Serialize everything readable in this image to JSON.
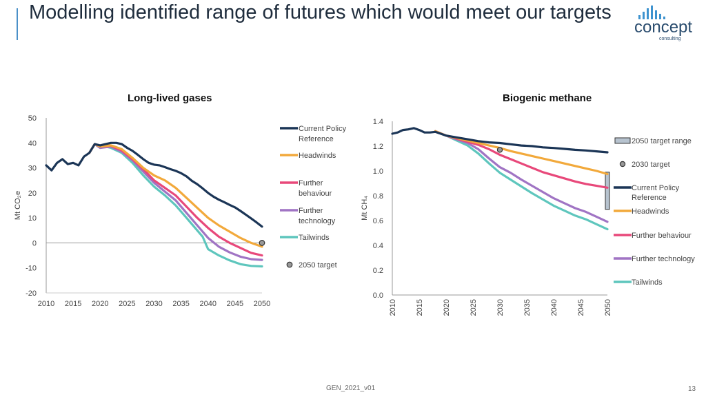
{
  "slide": {
    "title": "Modelling identified range of futures which would meet our targets",
    "footer": "GEN_2021_v01",
    "page_number": "13"
  },
  "logo": {
    "word": "concept",
    "sub": "consulting"
  },
  "colors": {
    "current_policy": "#1b3556",
    "headwinds": "#f2a93b",
    "further_behaviour": "#e8487a",
    "further_technology": "#a074c4",
    "tailwinds": "#5ec6bd",
    "axis": "#999999",
    "text": "#444444"
  },
  "chart_data": [
    {
      "type": "line",
      "title": "Long-lived gases",
      "ylabel": "Mt CO₂e",
      "xlabel": "",
      "xlim": [
        2010,
        2050
      ],
      "ylim": [
        -20,
        50
      ],
      "xticks": [
        2010,
        2015,
        2020,
        2025,
        2030,
        2035,
        2040,
        2045,
        2050
      ],
      "yticks": [
        50,
        40,
        30,
        20,
        10,
        0,
        -10,
        -20
      ],
      "legend_position": "right",
      "series": [
        {
          "name": "Current Policy Reference",
          "key": "current_policy",
          "x": [
            2010,
            2011,
            2012,
            2013,
            2014,
            2015,
            2016,
            2017,
            2018,
            2019,
            2020,
            2021,
            2022,
            2023,
            2024,
            2025,
            2026,
            2027,
            2028,
            2029,
            2030,
            2031,
            2032,
            2033,
            2034,
            2035,
            2036,
            2037,
            2038,
            2039,
            2040,
            2041,
            2042,
            2043,
            2044,
            2045,
            2046,
            2047,
            2048,
            2049,
            2050
          ],
          "y": [
            31,
            29,
            32,
            33.5,
            31.5,
            32,
            31,
            34.5,
            36,
            39.5,
            39,
            39.5,
            40,
            40,
            39.5,
            38,
            36.8,
            35.2,
            33.5,
            32,
            31.3,
            31,
            30.3,
            29.5,
            28.8,
            27.9,
            26.6,
            24.8,
            23.5,
            21.8,
            20,
            18.5,
            17.3,
            16.3,
            15.2,
            14.2,
            12.8,
            11.3,
            9.8,
            8.2,
            6.5
          ]
        },
        {
          "name": "Headwinds",
          "key": "headwinds",
          "x": [
            2018,
            2019,
            2020,
            2022,
            2024,
            2026,
            2028,
            2030,
            2032,
            2034,
            2036,
            2038,
            2040,
            2042,
            2044,
            2046,
            2048,
            2050
          ],
          "y": [
            36,
            39.5,
            38.5,
            39,
            37.5,
            34,
            30,
            27,
            25,
            22,
            18,
            14,
            10,
            7,
            4.5,
            2,
            0,
            -1.5
          ]
        },
        {
          "name": "Further behaviour",
          "key": "further_behaviour",
          "x": [
            2018,
            2019,
            2020,
            2022,
            2024,
            2026,
            2028,
            2030,
            2032,
            2034,
            2036,
            2038,
            2040,
            2042,
            2044,
            2046,
            2048,
            2050
          ],
          "y": [
            36,
            39.5,
            38.5,
            38.8,
            37,
            33.5,
            29.5,
            25,
            22,
            19,
            14.5,
            10,
            6,
            2.5,
            0,
            -2,
            -4,
            -5
          ]
        },
        {
          "name": "Further technology",
          "key": "further_technology",
          "x": [
            2018,
            2019,
            2020,
            2022,
            2024,
            2026,
            2028,
            2030,
            2032,
            2034,
            2036,
            2038,
            2040,
            2042,
            2044,
            2046,
            2048,
            2050
          ],
          "y": [
            36,
            39.5,
            38,
            38.5,
            36.5,
            33,
            28.5,
            24,
            20.5,
            17,
            12,
            7,
            2,
            -1.5,
            -3.8,
            -5.5,
            -6.5,
            -6.8
          ]
        },
        {
          "name": "Tailwinds",
          "key": "tailwinds",
          "x": [
            2018,
            2019,
            2020,
            2021,
            2022,
            2024,
            2026,
            2028,
            2030,
            2032,
            2034,
            2036,
            2038,
            2039,
            2040,
            2042,
            2044,
            2046,
            2048,
            2050
          ],
          "y": [
            36,
            39.5,
            38,
            38.5,
            38,
            36,
            32,
            27,
            22.5,
            19,
            15,
            10,
            5,
            2.5,
            -2.5,
            -5,
            -7,
            -8.5,
            -9.2,
            -9.4
          ]
        }
      ],
      "markers": [
        {
          "name": "2050 target",
          "x": 2050,
          "y": 0
        }
      ],
      "legend": [
        {
          "key": "current_policy",
          "lines": [
            "Current Policy",
            "Reference"
          ]
        },
        {
          "key": "headwinds",
          "lines": [
            "Headwinds"
          ]
        },
        {
          "key": "further_behaviour",
          "lines": [
            "Further",
            "behaviour"
          ]
        },
        {
          "key": "further_technology",
          "lines": [
            "Further",
            "technology"
          ]
        },
        {
          "key": "tailwinds",
          "lines": [
            "Tailwinds"
          ]
        },
        {
          "key": "target_2050",
          "lines": [
            "2050 target"
          ],
          "marker": "circle"
        }
      ]
    },
    {
      "type": "line",
      "title": "Biogenic methane",
      "ylabel": "Mt CH₄",
      "xlabel": "",
      "xlim": [
        2010,
        2050
      ],
      "ylim": [
        0.0,
        1.4
      ],
      "xticks": [
        2010,
        2015,
        2020,
        2025,
        2030,
        2035,
        2040,
        2045,
        2050
      ],
      "ytick_labels": [
        "1.4",
        "1.2",
        "1.0",
        "0.8",
        "0.6",
        "0.4",
        "0.2",
        "0.0"
      ],
      "yticks": [
        1.4,
        1.2,
        1.0,
        0.8,
        0.6,
        0.4,
        0.2,
        0.0
      ],
      "x_tick_rotation": "vertical",
      "legend_position": "right",
      "series": [
        {
          "name": "Current Policy Reference",
          "key": "current_policy",
          "x": [
            2010,
            2011,
            2012,
            2013,
            2014,
            2015,
            2016,
            2017,
            2018,
            2019,
            2020,
            2022,
            2024,
            2026,
            2028,
            2030,
            2032,
            2034,
            2036,
            2038,
            2040,
            2042,
            2044,
            2046,
            2048,
            2050
          ],
          "y": [
            1.3,
            1.31,
            1.33,
            1.335,
            1.345,
            1.33,
            1.31,
            1.31,
            1.315,
            1.3,
            1.285,
            1.27,
            1.255,
            1.24,
            1.23,
            1.225,
            1.215,
            1.205,
            1.2,
            1.19,
            1.185,
            1.178,
            1.17,
            1.165,
            1.158,
            1.15
          ]
        },
        {
          "name": "Headwinds",
          "key": "headwinds",
          "x": [
            2018,
            2020,
            2022,
            2024,
            2026,
            2028,
            2030,
            2032,
            2034,
            2036,
            2038,
            2040,
            2042,
            2044,
            2046,
            2048,
            2050
          ],
          "y": [
            1.32,
            1.285,
            1.265,
            1.245,
            1.225,
            1.205,
            1.185,
            1.16,
            1.14,
            1.12,
            1.1,
            1.08,
            1.06,
            1.04,
            1.02,
            1.0,
            0.975
          ]
        },
        {
          "name": "Further behaviour",
          "key": "further_behaviour",
          "x": [
            2018,
            2020,
            2022,
            2024,
            2026,
            2028,
            2030,
            2032,
            2034,
            2036,
            2038,
            2040,
            2042,
            2044,
            2046,
            2048,
            2050
          ],
          "y": [
            1.32,
            1.285,
            1.26,
            1.235,
            1.21,
            1.175,
            1.13,
            1.095,
            1.06,
            1.025,
            0.99,
            0.965,
            0.94,
            0.915,
            0.895,
            0.88,
            0.865
          ]
        },
        {
          "name": "Further technology",
          "key": "further_technology",
          "x": [
            2018,
            2020,
            2022,
            2024,
            2026,
            2028,
            2030,
            2032,
            2034,
            2036,
            2038,
            2040,
            2042,
            2044,
            2046,
            2048,
            2050
          ],
          "y": [
            1.32,
            1.285,
            1.255,
            1.225,
            1.175,
            1.1,
            1.03,
            0.985,
            0.93,
            0.88,
            0.83,
            0.78,
            0.74,
            0.7,
            0.67,
            0.63,
            0.59
          ]
        },
        {
          "name": "Tailwinds",
          "key": "tailwinds",
          "x": [
            2018,
            2020,
            2022,
            2024,
            2026,
            2028,
            2030,
            2032,
            2034,
            2036,
            2038,
            2040,
            2042,
            2044,
            2046,
            2048,
            2050
          ],
          "y": [
            1.32,
            1.285,
            1.245,
            1.205,
            1.14,
            1.06,
            0.985,
            0.93,
            0.875,
            0.82,
            0.77,
            0.72,
            0.68,
            0.64,
            0.61,
            0.57,
            0.53
          ]
        }
      ],
      "markers": [
        {
          "name": "2030 target",
          "x": 2030,
          "y": 1.17
        }
      ],
      "range_bars": [
        {
          "name": "2050 target range",
          "x": 2050,
          "y_low": 0.69,
          "y_high": 0.99
        }
      ],
      "legend": [
        {
          "key": "target_range",
          "lines": [
            "2050 target range"
          ],
          "marker": "box"
        },
        {
          "key": "target_2030",
          "lines": [
            "2030 target"
          ],
          "marker": "circle"
        },
        {
          "key": "current_policy",
          "lines": [
            "Current Policy",
            "Reference"
          ]
        },
        {
          "key": "headwinds",
          "lines": [
            "Headwinds"
          ]
        },
        {
          "key": "further_behaviour",
          "lines": [
            "Further behaviour"
          ]
        },
        {
          "key": "further_technology",
          "lines": [
            "Further technology"
          ]
        },
        {
          "key": "tailwinds",
          "lines": [
            "Tailwinds"
          ]
        }
      ]
    }
  ]
}
